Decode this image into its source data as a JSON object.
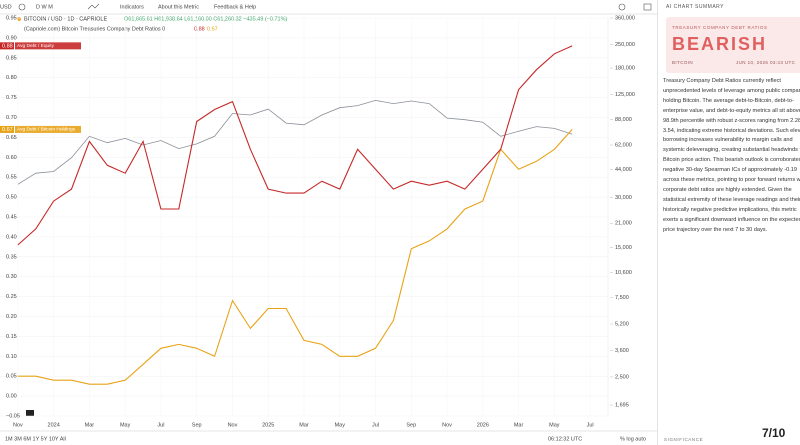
{
  "toolbar": {
    "symbol": "USD",
    "intervals": "D W M",
    "indicators": "Indicators",
    "about": "About this Metric",
    "feedback": "Feedback & Help"
  },
  "header": {
    "ohlc": "O61,665.61 H61,938.64 L61,160.00 C61,260.32 −435.49 (−0.71%)",
    "indicator": "(Capriole.com) Bitcoin Treasuries Company Debt Ratios 0"
  },
  "chart_data": {
    "type": "line",
    "title": "BITCOIN / USD · 1D · CAPRIOLE",
    "x": [
      "2023-11",
      "2023-12",
      "2024-01",
      "2024-02",
      "2024-03",
      "2024-04",
      "2024-05",
      "2024-06",
      "2024-07",
      "2024-08",
      "2024-09",
      "2024-10",
      "2024-11",
      "2024-12",
      "2025-01",
      "2025-02",
      "2025-03",
      "2025-04",
      "2025-05",
      "2025-06",
      "2025-07",
      "2025-08",
      "2025-09",
      "2025-10",
      "2025-11",
      "2025-12",
      "2026-01",
      "2026-02",
      "2026-03",
      "2026-04",
      "2026-05",
      "2026-06"
    ],
    "series": [
      {
        "name": "Avg Debt / Equity",
        "color": "#c62828",
        "axis": "y",
        "values": [
          0.38,
          0.42,
          0.49,
          0.52,
          0.64,
          0.58,
          0.56,
          0.64,
          0.47,
          0.47,
          0.69,
          0.72,
          0.74,
          0.62,
          0.52,
          0.51,
          0.51,
          0.54,
          0.52,
          0.62,
          0.57,
          0.52,
          0.54,
          0.53,
          0.54,
          0.52,
          0.57,
          0.62,
          0.77,
          0.82,
          0.86,
          0.88
        ]
      },
      {
        "name": "Avg Debt / Bitcoin Holdings",
        "color": "#e8a317",
        "axis": "y",
        "values": [
          0.05,
          0.05,
          0.04,
          0.04,
          0.03,
          0.03,
          0.04,
          0.08,
          0.12,
          0.13,
          0.12,
          0.1,
          0.24,
          0.17,
          0.22,
          0.22,
          0.14,
          0.13,
          0.1,
          0.1,
          0.12,
          0.19,
          0.37,
          0.39,
          0.42,
          0.47,
          0.49,
          0.62,
          0.57,
          0.59,
          0.62,
          0.67
        ]
      },
      {
        "name": "BITCOIN / USD · 1D · CAPRIOLE",
        "color": "#8a8f98",
        "axis": "y2",
        "values": [
          36000,
          42000,
          43000,
          52000,
          70000,
          64000,
          68000,
          62000,
          66000,
          59000,
          63000,
          70000,
          96000,
          94000,
          102000,
          84000,
          82000,
          94000,
          104000,
          107000,
          115000,
          110000,
          114000,
          110000,
          90000,
          88000,
          85000,
          70000,
          75000,
          80000,
          78000,
          72000
        ]
      }
    ],
    "xlim": [
      "2023-10",
      "2026-08"
    ],
    "xticks": [
      {
        "value": "2023-11",
        "label": "Nov"
      },
      {
        "value": "2024-01",
        "label": "2024"
      },
      {
        "value": "2024-03",
        "label": "Mar"
      },
      {
        "value": "2024-05",
        "label": "May"
      },
      {
        "value": "2024-07",
        "label": "Jul"
      },
      {
        "value": "2024-09",
        "label": "Sep"
      },
      {
        "value": "2024-11",
        "label": "Nov"
      },
      {
        "value": "2025-01",
        "label": "2025"
      },
      {
        "value": "2025-03",
        "label": "Mar"
      },
      {
        "value": "2025-05",
        "label": "May"
      },
      {
        "value": "2025-07",
        "label": "Jul"
      },
      {
        "value": "2025-09",
        "label": "Sep"
      },
      {
        "value": "2025-11",
        "label": "Nov"
      },
      {
        "value": "2026-01",
        "label": "2026"
      },
      {
        "value": "2026-03",
        "label": "Mar"
      },
      {
        "value": "2026-05",
        "label": "May"
      },
      {
        "value": "2026-07",
        "label": "Jul"
      }
    ],
    "ylim": [
      -0.05,
      0.95
    ],
    "yticks": [
      0.95,
      {
        "value": 0.9,
        "label": "0.90"
      },
      0.85,
      {
        "value": 0.8,
        "label": "0.80"
      },
      0.75,
      {
        "value": 0.7,
        "label": "0.70"
      },
      0.65,
      {
        "value": 0.6,
        "label": "0.60"
      },
      0.55,
      {
        "value": 0.5,
        "label": "0.50"
      },
      0.45,
      {
        "value": 0.4,
        "label": "0.40"
      },
      0.35,
      {
        "value": 0.3,
        "label": "0.30"
      },
      0.25,
      {
        "value": 0.2,
        "label": "0.20"
      },
      0.15,
      {
        "value": 0.1,
        "label": "0.10"
      },
      0.05,
      {
        "value": 0,
        "label": "0.00"
      },
      {
        "value": -0.05,
        "label": "−0.05"
      }
    ],
    "y2lim": [
      1455,
      360000
    ],
    "y2scale": "log",
    "y2ticks": [
      {
        "value": 360000,
        "label": "360,000"
      },
      {
        "value": 250000,
        "label": "250,000"
      },
      {
        "value": 180000,
        "label": "180,000"
      },
      {
        "value": 125000,
        "label": "125,000"
      },
      {
        "value": 88000,
        "label": "88,000"
      },
      {
        "value": 62000,
        "label": "62,000"
      },
      {
        "value": 44000,
        "label": "44,000"
      },
      {
        "value": 30000,
        "label": "30,000"
      },
      {
        "value": 21000,
        "label": "21,000"
      },
      {
        "value": 15000,
        "label": "15,000"
      },
      {
        "value": 10600,
        "label": "10,600"
      },
      {
        "value": 7500,
        "label": "7,500"
      },
      {
        "value": 5200,
        "label": "5,200"
      },
      {
        "value": 3600,
        "label": "3,600"
      },
      {
        "value": 2500,
        "label": "2,500"
      },
      {
        "value": 1695,
        "label": "1,695"
      }
    ],
    "grid": true
  },
  "bottom": {
    "ranges": "1M 3M 6M 1Y 5Y 10Y All",
    "time": "06:12:32 UTC",
    "scale": "% log auto"
  },
  "panel": {
    "heading": "AI CHART SUMMARY",
    "card_title": "TREASURY COMPANY DEBT RATIOS",
    "verdict": "BEARISH",
    "asset": "BITCOIN",
    "date": "JUN 10, 2026 03:43 UTC",
    "summary": "Treasury Company Debt Ratios currently reflect unprecedented levels of leverage among public companies holding Bitcoin. The average debt-to-Bitcoin, debt-to-enterprise value, and debt-to-equity metrics all sit above the 98.9th percentile with robust z-scores ranging from 2.28 to 3.54, indicating extreme historical deviations. Such elevated borrowing increases vulnerability to margin calls and systemic deleveraging, creating substantial headwinds for Bitcoin price action. This bearish outlook is corroborated by negative 30-day Spearman ICs of approximately -0.19 across these metrics, pointing to poor forward returns when corporate debt ratios are highly extended. Given the statistical extremity of these leverage readings and their historically negative predictive implications, this metric exerts a significant downward influence on the expected price trajectory over the next 7 to 30 days.",
    "score": "7/10",
    "score_label": "SIGNIFICANCE"
  }
}
